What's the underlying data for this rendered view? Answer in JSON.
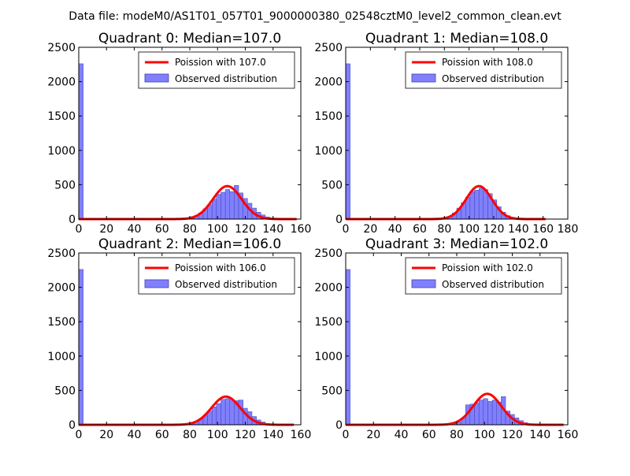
{
  "suptitle": "Data file: modeM0/AS1T01_057T01_9000000380_02548cztM0_level2_common_clean.evt",
  "colors": {
    "poisson_line": "#ff0000",
    "bar_fill": "#8080ff",
    "bar_edge": "#4040b0",
    "axes": "#000000"
  },
  "chart_data": [
    {
      "type": "bar",
      "title": "Quadrant 0: Median=107.0",
      "xlim": [
        0,
        160
      ],
      "ylim": [
        0,
        2500
      ],
      "xticks": [
        0,
        20,
        40,
        60,
        80,
        100,
        120,
        140,
        160
      ],
      "yticks": [
        0,
        500,
        1000,
        1500,
        2000,
        2500
      ],
      "legend_position": "top-right",
      "series": [
        {
          "name": "Poission with 107.0",
          "kind": "line",
          "median": 107.0,
          "peak": 480,
          "sigma": 10.3,
          "x_range": [
            0,
            157
          ]
        },
        {
          "name": "Observed distribution",
          "kind": "bar",
          "bin_width": 3.2,
          "bins": [
            {
              "x": 0,
              "y": 2260
            },
            {
              "x": 76.8,
              "y": 10
            },
            {
              "x": 80,
              "y": 25
            },
            {
              "x": 83.2,
              "y": 50
            },
            {
              "x": 86.4,
              "y": 90
            },
            {
              "x": 89.6,
              "y": 150
            },
            {
              "x": 92.8,
              "y": 210
            },
            {
              "x": 96,
              "y": 290
            },
            {
              "x": 99.2,
              "y": 360
            },
            {
              "x": 102.4,
              "y": 390
            },
            {
              "x": 105.6,
              "y": 430
            },
            {
              "x": 108.8,
              "y": 400
            },
            {
              "x": 112,
              "y": 490
            },
            {
              "x": 115.2,
              "y": 380
            },
            {
              "x": 118.4,
              "y": 300
            },
            {
              "x": 121.6,
              "y": 230
            },
            {
              "x": 124.8,
              "y": 160
            },
            {
              "x": 128,
              "y": 100
            },
            {
              "x": 131.2,
              "y": 60
            },
            {
              "x": 134.4,
              "y": 30
            },
            {
              "x": 137.6,
              "y": 15
            }
          ]
        }
      ]
    },
    {
      "type": "bar",
      "title": "Quadrant 1: Median=108.0",
      "xlim": [
        0,
        180
      ],
      "ylim": [
        0,
        2500
      ],
      "xticks": [
        0,
        20,
        40,
        60,
        80,
        100,
        120,
        140,
        160,
        180
      ],
      "yticks": [
        0,
        500,
        1000,
        1500,
        2000,
        2500
      ],
      "legend_position": "top-right",
      "series": [
        {
          "name": "Poission with 108.0",
          "kind": "line",
          "median": 108.0,
          "peak": 480,
          "sigma": 10.4,
          "x_range": [
            0,
            162
          ]
        },
        {
          "name": "Observed distribution",
          "kind": "bar",
          "bin_width": 3.6,
          "bins": [
            {
              "x": 0,
              "y": 2260
            },
            {
              "x": 79.2,
              "y": 15
            },
            {
              "x": 82.8,
              "y": 40
            },
            {
              "x": 86.4,
              "y": 90
            },
            {
              "x": 90,
              "y": 160
            },
            {
              "x": 93.6,
              "y": 240
            },
            {
              "x": 97.2,
              "y": 320
            },
            {
              "x": 100.8,
              "y": 400
            },
            {
              "x": 104.4,
              "y": 420
            },
            {
              "x": 108,
              "y": 450
            },
            {
              "x": 111.6,
              "y": 430
            },
            {
              "x": 115.2,
              "y": 370
            },
            {
              "x": 118.8,
              "y": 280
            },
            {
              "x": 122.4,
              "y": 180
            },
            {
              "x": 126,
              "y": 100
            },
            {
              "x": 129.6,
              "y": 50
            },
            {
              "x": 133.2,
              "y": 20
            }
          ]
        }
      ]
    },
    {
      "type": "bar",
      "title": "Quadrant 2: Median=106.0",
      "xlim": [
        0,
        160
      ],
      "ylim": [
        0,
        2500
      ],
      "xticks": [
        0,
        20,
        40,
        60,
        80,
        100,
        120,
        140,
        160
      ],
      "yticks": [
        0,
        500,
        1000,
        1500,
        2000,
        2500
      ],
      "legend_position": "top-right",
      "series": [
        {
          "name": "Poission with 106.0",
          "kind": "line",
          "median": 106.0,
          "peak": 410,
          "sigma": 10.3,
          "x_range": [
            0,
            155
          ]
        },
        {
          "name": "Observed distribution",
          "kind": "bar",
          "bin_width": 3.2,
          "bins": [
            {
              "x": 0,
              "y": 2260
            },
            {
              "x": 76.8,
              "y": 10
            },
            {
              "x": 80,
              "y": 25
            },
            {
              "x": 83.2,
              "y": 50
            },
            {
              "x": 86.4,
              "y": 90
            },
            {
              "x": 89.6,
              "y": 140
            },
            {
              "x": 92.8,
              "y": 200
            },
            {
              "x": 96,
              "y": 260
            },
            {
              "x": 99.2,
              "y": 310
            },
            {
              "x": 102.4,
              "y": 370
            },
            {
              "x": 105.6,
              "y": 380
            },
            {
              "x": 108.8,
              "y": 360
            },
            {
              "x": 112,
              "y": 350
            },
            {
              "x": 115.2,
              "y": 360
            },
            {
              "x": 118.4,
              "y": 240
            },
            {
              "x": 121.6,
              "y": 190
            },
            {
              "x": 124.8,
              "y": 120
            },
            {
              "x": 128,
              "y": 70
            },
            {
              "x": 131.2,
              "y": 40
            },
            {
              "x": 134.4,
              "y": 20
            }
          ]
        }
      ]
    },
    {
      "type": "bar",
      "title": "Quadrant 3: Median=102.0",
      "xlim": [
        0,
        160
      ],
      "ylim": [
        0,
        2500
      ],
      "xticks": [
        0,
        20,
        40,
        60,
        80,
        100,
        120,
        140,
        160
      ],
      "yticks": [
        0,
        500,
        1000,
        1500,
        2000,
        2500
      ],
      "legend_position": "top-right",
      "series": [
        {
          "name": "Poission with 102.0",
          "kind": "line",
          "median": 102.0,
          "peak": 450,
          "sigma": 10.1,
          "x_range": [
            0,
            157
          ]
        },
        {
          "name": "Observed distribution",
          "kind": "bar",
          "bin_width": 3.2,
          "bins": [
            {
              "x": 0,
              "y": 2260
            },
            {
              "x": 76.8,
              "y": 15
            },
            {
              "x": 80,
              "y": 40
            },
            {
              "x": 83.2,
              "y": 100
            },
            {
              "x": 86.4,
              "y": 290
            },
            {
              "x": 89.6,
              "y": 300
            },
            {
              "x": 92.8,
              "y": 320
            },
            {
              "x": 96,
              "y": 360
            },
            {
              "x": 99.2,
              "y": 380
            },
            {
              "x": 102.4,
              "y": 340
            },
            {
              "x": 105.6,
              "y": 360
            },
            {
              "x": 108.8,
              "y": 330
            },
            {
              "x": 112,
              "y": 410
            },
            {
              "x": 115.2,
              "y": 200
            },
            {
              "x": 118.4,
              "y": 150
            },
            {
              "x": 121.6,
              "y": 100
            },
            {
              "x": 124.8,
              "y": 60
            },
            {
              "x": 128,
              "y": 30
            },
            {
              "x": 131.2,
              "y": 15
            }
          ]
        }
      ]
    }
  ]
}
